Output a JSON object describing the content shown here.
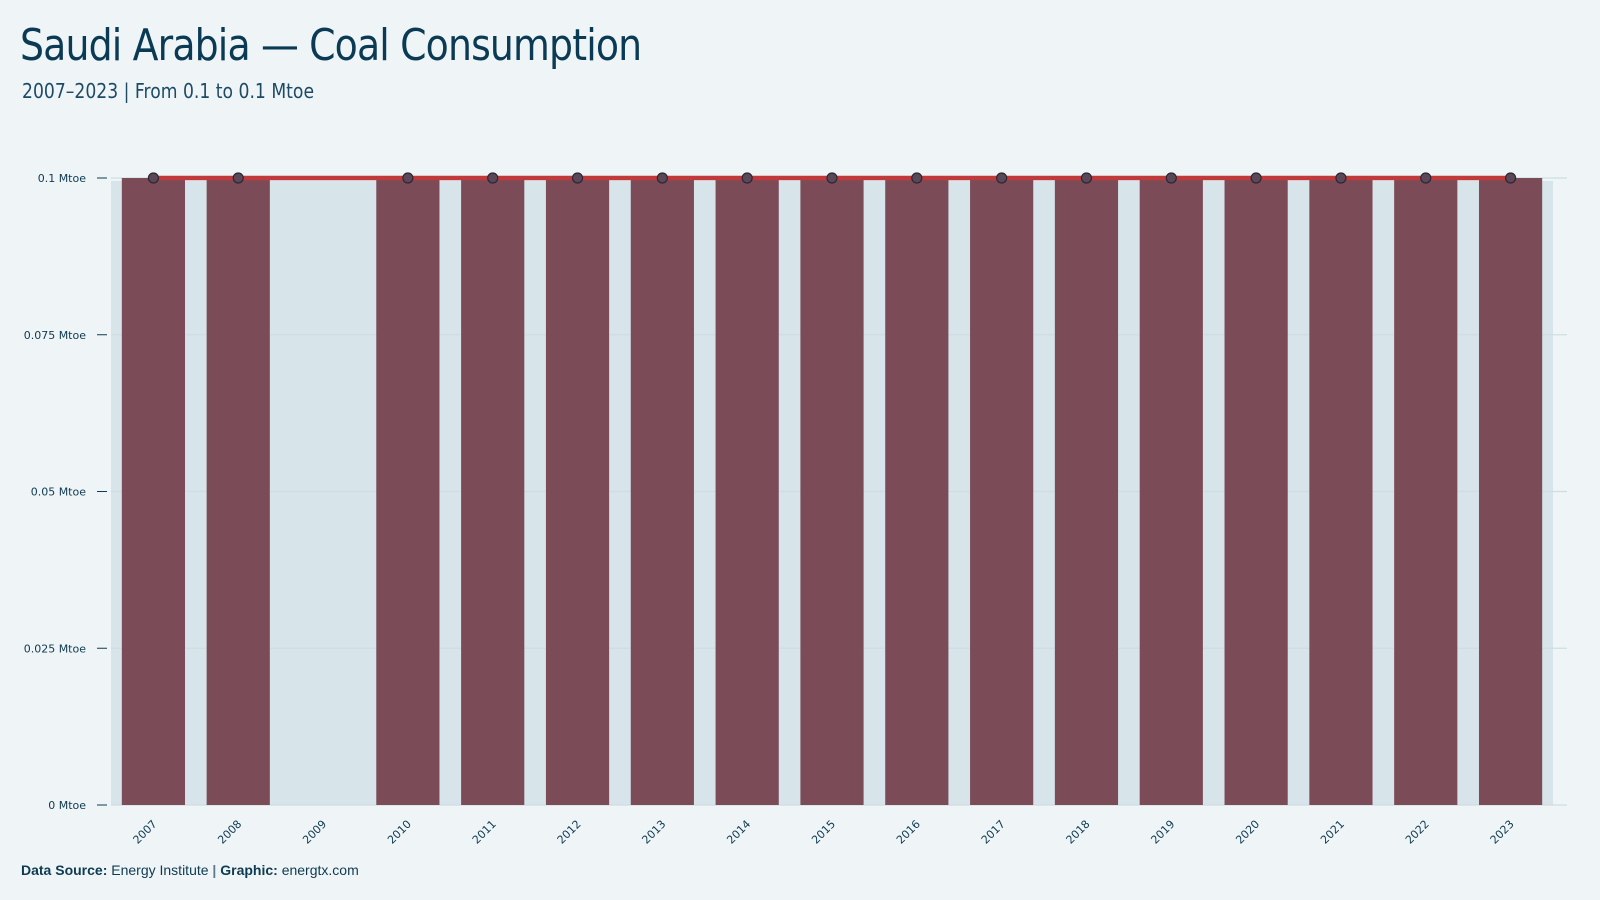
{
  "header": {
    "title": "Saudi Arabia — Coal Consumption",
    "subtitle": "2007–2023 | From 0.1 to 0.1 Mtoe"
  },
  "footer": {
    "source_label": "Data Source:",
    "source_value": "Energy Institute",
    "separator": "|",
    "graphic_label": "Graphic:",
    "graphic_value": "energtx.com"
  },
  "colors": {
    "bar": "#7b4c58",
    "missing_band": "#d7e4ea",
    "line": "#c0393b",
    "marker": "#5a4858",
    "grid": "#cfdde3",
    "text": "#0e3a52"
  },
  "chart_data": {
    "type": "bar",
    "categories": [
      "2007",
      "2008",
      "2009",
      "2010",
      "2011",
      "2012",
      "2013",
      "2014",
      "2015",
      "2016",
      "2017",
      "2018",
      "2019",
      "2020",
      "2021",
      "2022",
      "2023"
    ],
    "series": [
      {
        "values": [
          0.1,
          0.1,
          null,
          0.1,
          0.1,
          0.1,
          0.1,
          0.1,
          0.1,
          0.1,
          0.1,
          0.1,
          0.1,
          0.1,
          0.1,
          0.1,
          0.1
        ]
      }
    ],
    "overlay": "line with circle markers at each bar top",
    "ylim": [
      0,
      0.1
    ],
    "yticks": [
      0,
      0.025,
      0.05,
      0.075,
      0.1
    ],
    "ytick_labels": [
      "0 Mtoe",
      "0.025 Mtoe",
      "0.05 Mtoe",
      "0.075 Mtoe",
      "0.1 Mtoe"
    ],
    "grid": true,
    "xlabel": "",
    "ylabel": ""
  }
}
